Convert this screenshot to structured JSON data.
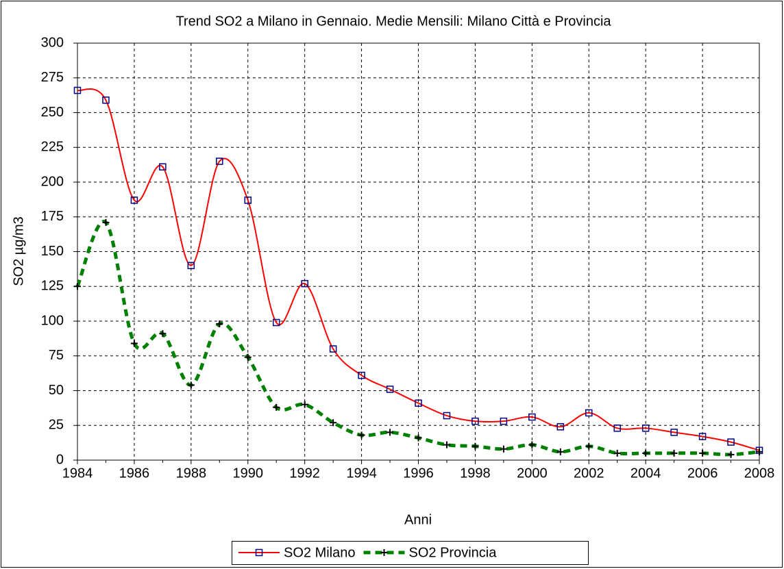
{
  "chart_data": {
    "type": "line",
    "title": "Trend SO2 a Milano in Gennaio. Medie Mensili: Milano Città e Provincia",
    "x_label": "Anni",
    "y_label": "SO2 µg/m3",
    "x": [
      1984,
      1985,
      1986,
      1987,
      1988,
      1989,
      1990,
      1991,
      1992,
      1993,
      1994,
      1995,
      1996,
      1997,
      1998,
      1999,
      2000,
      2001,
      2002,
      2003,
      2004,
      2005,
      2006,
      2007,
      2008
    ],
    "series": [
      {
        "name": "SO2 Milano",
        "color": "#ff0000",
        "marker_color": "#000080",
        "values": [
          266,
          259,
          187,
          211,
          140,
          215,
          187,
          99,
          127,
          80,
          61,
          51,
          41,
          32,
          28,
          28,
          31,
          24,
          34,
          23,
          23,
          20,
          17,
          13,
          7
        ]
      },
      {
        "name": "SO2 Provincia",
        "color": "#008000",
        "marker_color": "#000000",
        "values": [
          125,
          171,
          84,
          91,
          54,
          98,
          74,
          38,
          40,
          27,
          18,
          20,
          16,
          11,
          10,
          8,
          11,
          6,
          10,
          5,
          5,
          5,
          5,
          4,
          6
        ]
      }
    ],
    "xlim": [
      1984,
      2008
    ],
    "xticks": [
      1984,
      1986,
      1988,
      1990,
      1992,
      1994,
      1996,
      1998,
      2000,
      2002,
      2004,
      2006,
      2008
    ],
    "ylim": [
      0,
      300
    ],
    "yticks": [
      0,
      25,
      50,
      75,
      100,
      125,
      150,
      175,
      200,
      225,
      250,
      275,
      300
    ],
    "grid": true,
    "legend": "bottom"
  }
}
